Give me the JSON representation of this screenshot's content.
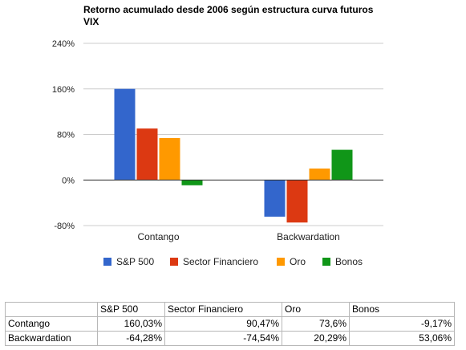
{
  "chart_data": {
    "type": "bar",
    "title": "Retorno acumulado desde 2006 según estructura curva futuros VIX",
    "title_lines": [
      "Retorno acumulado desde 2006 según estructura curva futuros",
      "VIX"
    ],
    "categories": [
      "Contango",
      "Backwardation"
    ],
    "series": [
      {
        "name": "S&P 500",
        "values": [
          160.03,
          -64.28
        ],
        "color": "#3366cc"
      },
      {
        "name": "Sector Financiero",
        "values": [
          90.47,
          -74.54
        ],
        "color": "#dc3912"
      },
      {
        "name": "Oro",
        "values": [
          73.6,
          20.29
        ],
        "color": "#ff9900"
      },
      {
        "name": "Bonos",
        "values": [
          -9.17,
          53.06
        ],
        "color": "#109618"
      }
    ],
    "yticks": [
      240,
      160,
      80,
      0,
      -80
    ],
    "ytick_labels": [
      "240%",
      "160%",
      "80%",
      "0%",
      "-80%"
    ],
    "ylim": [
      -80,
      240
    ],
    "xlabel": "",
    "ylabel": "",
    "grid": true,
    "legend_position": "bottom"
  },
  "table": {
    "headers": [
      "",
      "S&P 500",
      "Sector Financiero",
      "Oro",
      "Bonos"
    ],
    "rows": [
      {
        "label": "Contango",
        "cells": [
          "160,03%",
          "90,47%",
          "73,6%",
          "-9,17%"
        ]
      },
      {
        "label": "Backwardation",
        "cells": [
          "-64,28%",
          "-74,54%",
          "20,29%",
          "53,06%"
        ]
      }
    ]
  }
}
